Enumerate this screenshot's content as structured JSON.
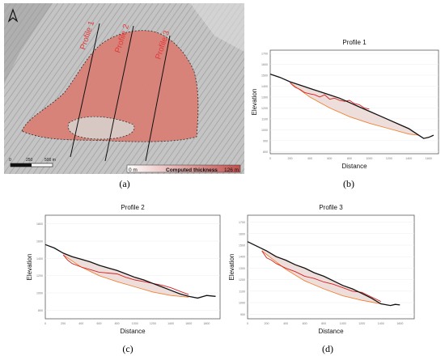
{
  "map": {
    "profile_labels": [
      "Profile 1",
      "Profile 2",
      "Profile 3"
    ],
    "scale_bar_ticks": [
      "0",
      "250",
      "500 m"
    ],
    "legend_min": "0 m",
    "legend_title": "Computed thickness",
    "legend_max": "126 m",
    "north_arrow": "north-arrow-icon"
  },
  "captions": [
    "(a)",
    "(b)",
    "(c)",
    "(d)"
  ],
  "colors": {
    "terrain": "#bfbfbf",
    "thickness_high": "#c0504d",
    "terrain_line": "#111111",
    "failure_surface": "#f08030",
    "deposit_line": "#d62020"
  },
  "chart_data": [
    {
      "type": "line",
      "title": "Profile 1",
      "xlabel": "Distance",
      "ylabel": "Elevation",
      "xticks": [
        "0",
        "200",
        "400",
        "600",
        "800",
        "1000",
        "1200",
        "1400",
        "1600"
      ],
      "yticks": [
        "1700",
        "1600",
        "1500",
        "1400",
        "1300",
        "1200",
        "1100",
        "1000",
        "900",
        "800"
      ],
      "xlim": [
        0,
        1700
      ],
      "ylim": [
        780,
        1730
      ],
      "series": [
        {
          "name": "",
          "color": "#111111",
          "x": [
            0,
            100,
            200,
            300,
            400,
            500,
            600,
            700,
            800,
            900,
            1000,
            1100,
            1200,
            1300,
            1400,
            1500,
            1550,
            1600,
            1650
          ],
          "y": [
            1510,
            1480,
            1440,
            1410,
            1380,
            1350,
            1320,
            1290,
            1250,
            1210,
            1170,
            1130,
            1090,
            1050,
            1010,
            950,
            920,
            930,
            950
          ]
        },
        {
          "name": "",
          "color": "#d62020",
          "x": [
            200,
            250,
            300,
            350,
            400,
            450,
            500,
            550,
            600,
            650,
            700,
            750,
            800,
            850,
            900,
            950,
            1000
          ],
          "y": [
            1430,
            1390,
            1370,
            1340,
            1330,
            1320,
            1300,
            1320,
            1280,
            1290,
            1270,
            1260,
            1270,
            1240,
            1230,
            1200,
            1190
          ]
        },
        {
          "name": "",
          "color": "#f08030",
          "x": [
            200,
            400,
            600,
            800,
            1000,
            1200,
            1400,
            1500
          ],
          "y": [
            1430,
            1300,
            1200,
            1120,
            1060,
            1010,
            960,
            950
          ]
        }
      ]
    },
    {
      "type": "line",
      "title": "Profile 2",
      "xlabel": "Distance",
      "ylabel": "Elevation",
      "xticks": [
        "0",
        "200",
        "400",
        "600",
        "800",
        "1000",
        "1200",
        "1400",
        "1600",
        "1800"
      ],
      "yticks": [
        "1800",
        "1600",
        "1400",
        "1200",
        "1000",
        "800"
      ],
      "xlim": [
        0,
        1950
      ],
      "ylim": [
        700,
        1900
      ],
      "series": [
        {
          "name": "",
          "color": "#111111",
          "x": [
            0,
            100,
            200,
            300,
            400,
            500,
            600,
            700,
            800,
            900,
            1000,
            1100,
            1200,
            1300,
            1400,
            1500,
            1600,
            1700,
            1800,
            1900
          ],
          "y": [
            1560,
            1520,
            1460,
            1420,
            1390,
            1360,
            1320,
            1290,
            1260,
            1220,
            1180,
            1150,
            1110,
            1070,
            1030,
            990,
            960,
            940,
            970,
            960
          ]
        },
        {
          "name": "",
          "color": "#d62020",
          "x": [
            200,
            250,
            300,
            400,
            500,
            600,
            700,
            800,
            900,
            1000,
            1100,
            1200,
            1300,
            1400,
            1500,
            1600
          ],
          "y": [
            1440,
            1380,
            1340,
            1300,
            1270,
            1240,
            1230,
            1220,
            1180,
            1150,
            1130,
            1110,
            1090,
            1060,
            1020,
            980
          ]
        },
        {
          "name": "",
          "color": "#f08030",
          "x": [
            200,
            400,
            600,
            800,
            1000,
            1200,
            1400,
            1600
          ],
          "y": [
            1440,
            1300,
            1200,
            1130,
            1070,
            1010,
            970,
            950
          ]
        }
      ]
    },
    {
      "type": "line",
      "title": "Profile 3",
      "xlabel": "Distance",
      "ylabel": "Elevation",
      "xticks": [
        "0",
        "200",
        "400",
        "600",
        "800",
        "1000",
        "1200",
        "1400",
        "1600"
      ],
      "yticks": [
        "1700",
        "1600",
        "1500",
        "1400",
        "1300",
        "1200",
        "1100",
        "1000",
        "900"
      ],
      "xlim": [
        0,
        1750
      ],
      "ylim": [
        860,
        1760
      ],
      "series": [
        {
          "name": "",
          "color": "#111111",
          "x": [
            0,
            100,
            200,
            300,
            400,
            500,
            600,
            700,
            800,
            900,
            1000,
            1100,
            1200,
            1300,
            1400,
            1500,
            1550,
            1600
          ],
          "y": [
            1530,
            1490,
            1450,
            1400,
            1370,
            1330,
            1300,
            1260,
            1230,
            1190,
            1150,
            1120,
            1080,
            1040,
            990,
            975,
            985,
            980
          ]
        },
        {
          "name": "",
          "color": "#d62020",
          "x": [
            150,
            200,
            250,
            300,
            400,
            500,
            600,
            700,
            800,
            900,
            1000,
            1100,
            1200,
            1300,
            1400
          ],
          "y": [
            1450,
            1390,
            1370,
            1340,
            1300,
            1270,
            1230,
            1210,
            1180,
            1160,
            1130,
            1100,
            1090,
            1050,
            1010
          ]
        },
        {
          "name": "",
          "color": "#f08030",
          "x": [
            150,
            400,
            600,
            800,
            1000,
            1200,
            1400
          ],
          "y": [
            1450,
            1290,
            1190,
            1120,
            1060,
            1020,
            990
          ]
        }
      ]
    }
  ]
}
